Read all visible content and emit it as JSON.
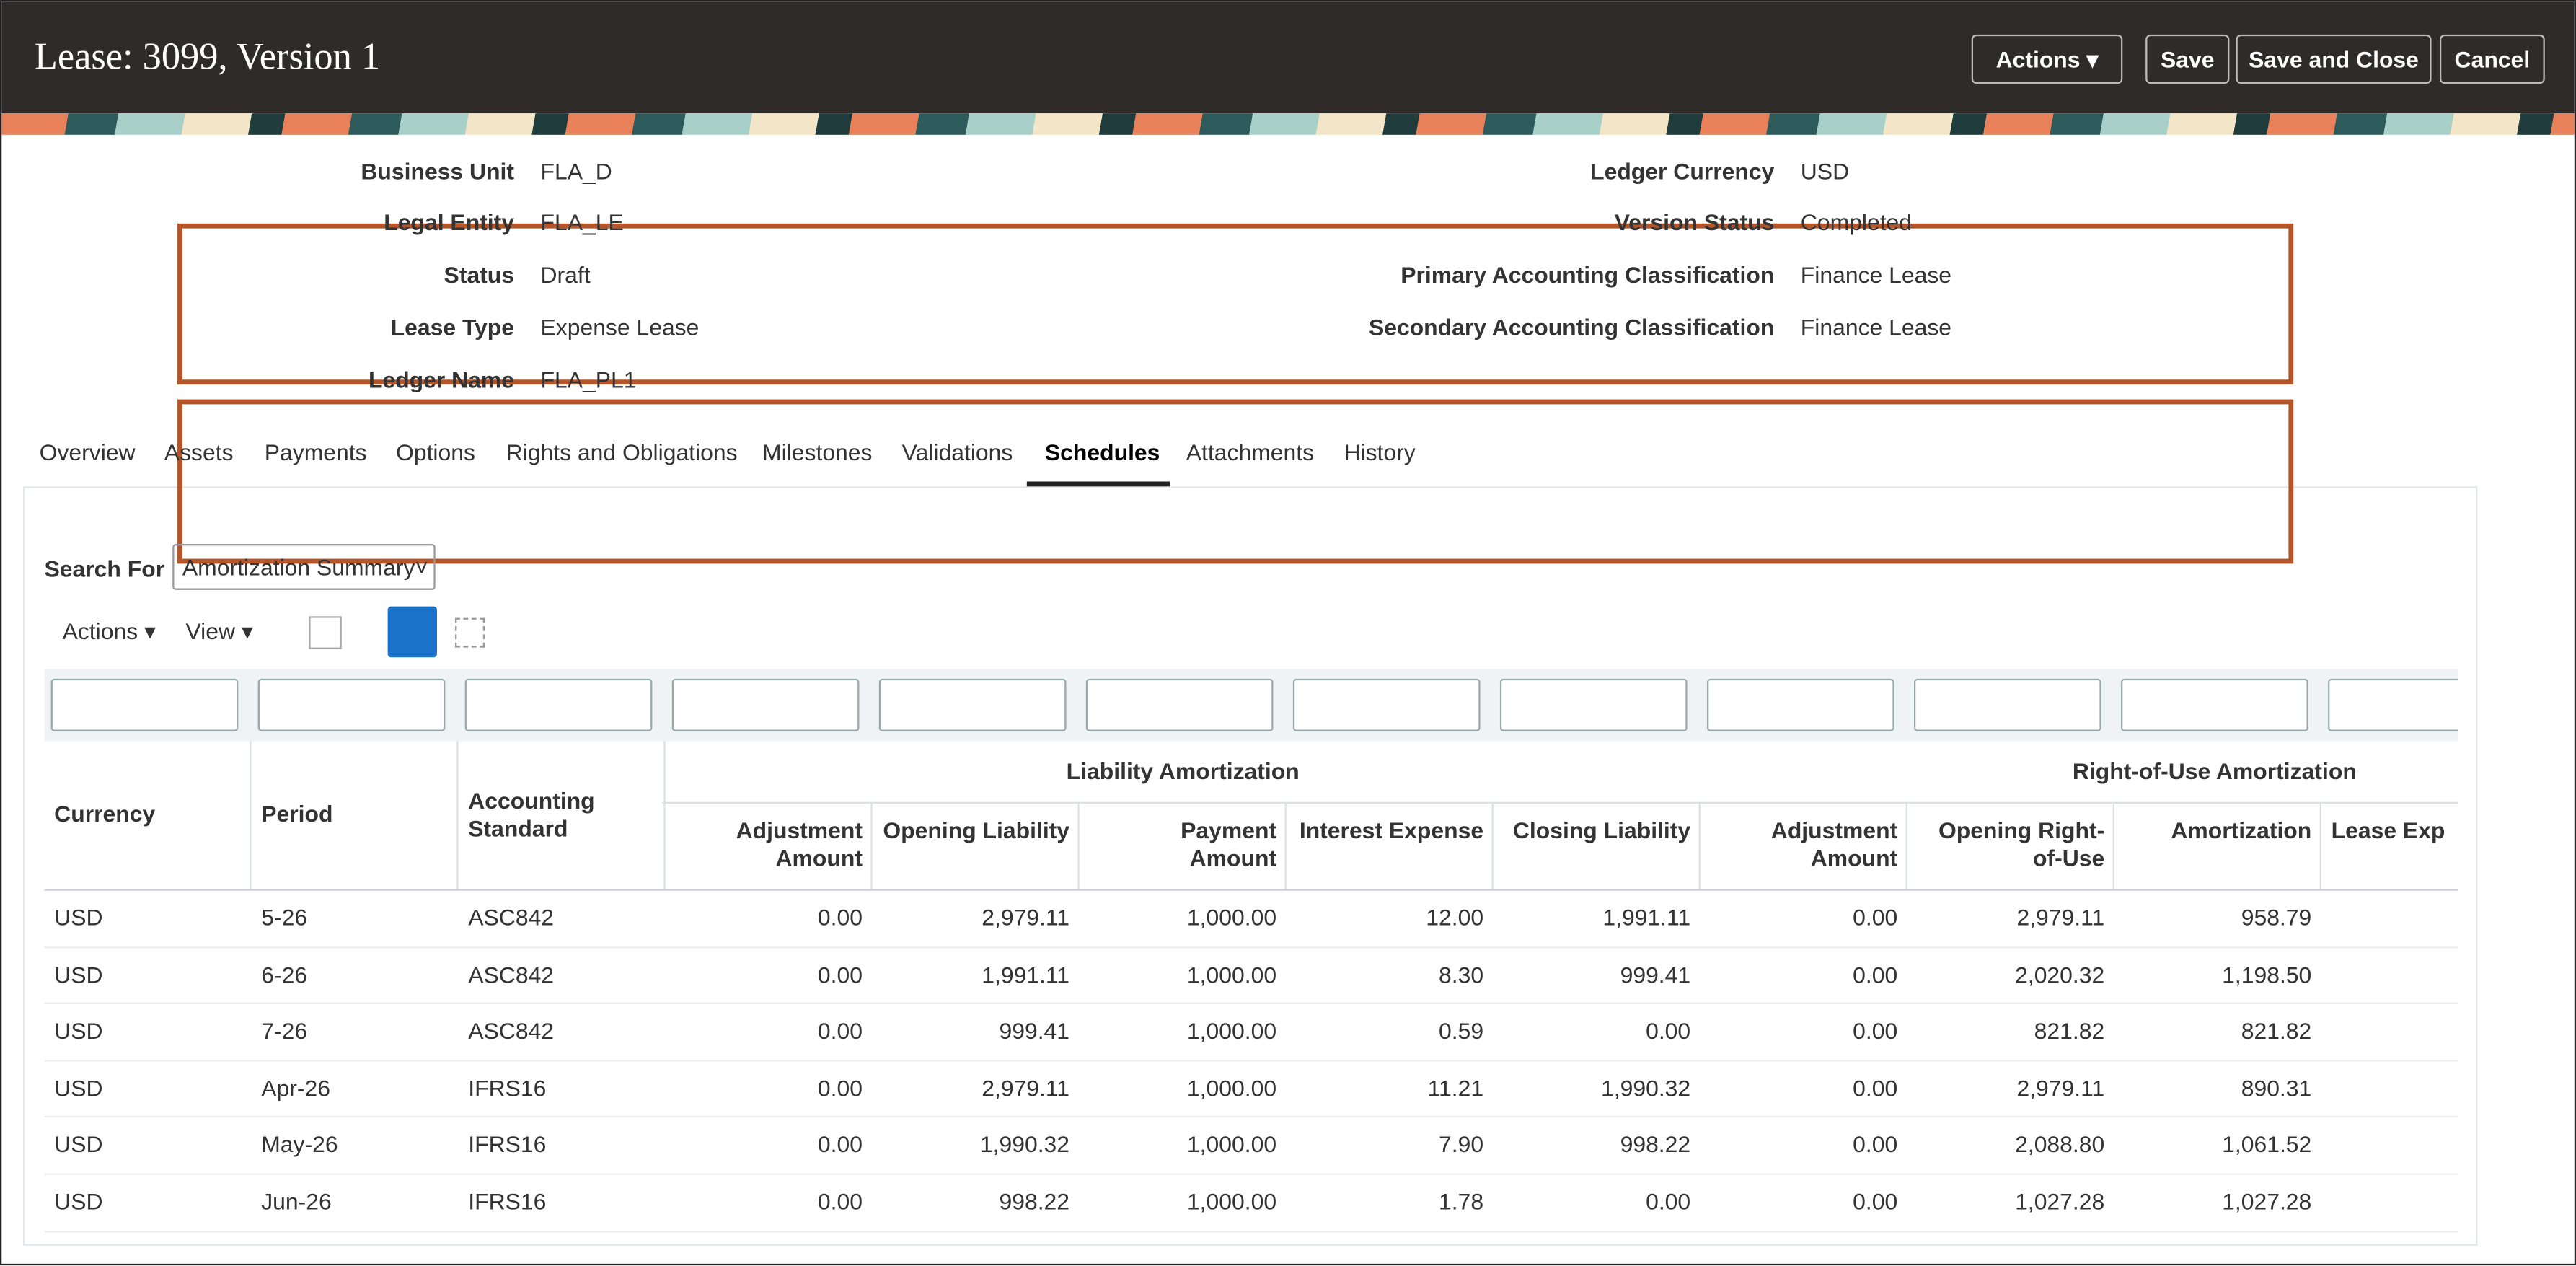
{
  "header": {
    "title": "Lease: 3099, Version 1",
    "buttons": [
      "Actions",
      "Save",
      "Save and Close",
      "Cancel"
    ]
  },
  "fields_left": [
    {
      "label": "Business Unit",
      "value": "FLA_D"
    },
    {
      "label": "Legal Entity",
      "value": "FLA_LE"
    },
    {
      "label": "Status",
      "value": "Draft"
    },
    {
      "label": "Lease Type",
      "value": "Expense Lease"
    },
    {
      "label": "Ledger Name",
      "value": "FLA_PL1"
    }
  ],
  "fields_right": [
    {
      "label": "Ledger Currency",
      "value": "USD"
    },
    {
      "label": "Version Status",
      "value": "Completed"
    },
    {
      "label": "Primary Accounting Classification",
      "value": "Finance Lease"
    },
    {
      "label": "Secondary Accounting Classification",
      "value": "Finance Lease"
    }
  ],
  "tabs": [
    "Overview",
    "Assets",
    "Payments",
    "Options",
    "Rights and Obligations",
    "Milestones",
    "Validations",
    "Schedules",
    "Attachments",
    "History"
  ],
  "search": {
    "label": "Search For",
    "value": "Amortization Summary"
  },
  "toolbar": [
    "Actions",
    "View"
  ],
  "table": {
    "groups": [
      "Liability Amortization",
      "Right-of-Use Amortization"
    ],
    "columns": [
      "Currency",
      "Period",
      "Accounting Standard",
      "Adjustment Amount",
      "Opening Liability",
      "Payment Amount",
      "Interest Expense",
      "Closing Liability",
      "Adjustment Amount",
      "Opening Right-of-Use",
      "Amortization",
      "Lease Exp"
    ],
    "rows": [
      [
        "USD",
        "5-26",
        "ASC842",
        "0.00",
        "2,979.11",
        "1,000.00",
        "12.00",
        "1,991.11",
        "0.00",
        "2,979.11",
        "958.79"
      ],
      [
        "USD",
        "6-26",
        "ASC842",
        "0.00",
        "1,991.11",
        "1,000.00",
        "8.30",
        "999.41",
        "0.00",
        "2,020.32",
        "1,198.50"
      ],
      [
        "USD",
        "7-26",
        "ASC842",
        "0.00",
        "999.41",
        "1,000.00",
        "0.59",
        "0.00",
        "0.00",
        "821.82",
        "821.82"
      ],
      [
        "USD",
        "Apr-26",
        "IFRS16",
        "0.00",
        "2,979.11",
        "1,000.00",
        "11.21",
        "1,990.32",
        "0.00",
        "2,979.11",
        "890.31"
      ],
      [
        "USD",
        "May-26",
        "IFRS16",
        "0.00",
        "1,990.32",
        "1,000.00",
        "7.90",
        "998.22",
        "0.00",
        "2,088.80",
        "1,061.52"
      ],
      [
        "USD",
        "Jun-26",
        "IFRS16",
        "0.00",
        "998.22",
        "1,000.00",
        "1.78",
        "0.00",
        "0.00",
        "1,027.28",
        "1,027.28"
      ]
    ]
  }
}
